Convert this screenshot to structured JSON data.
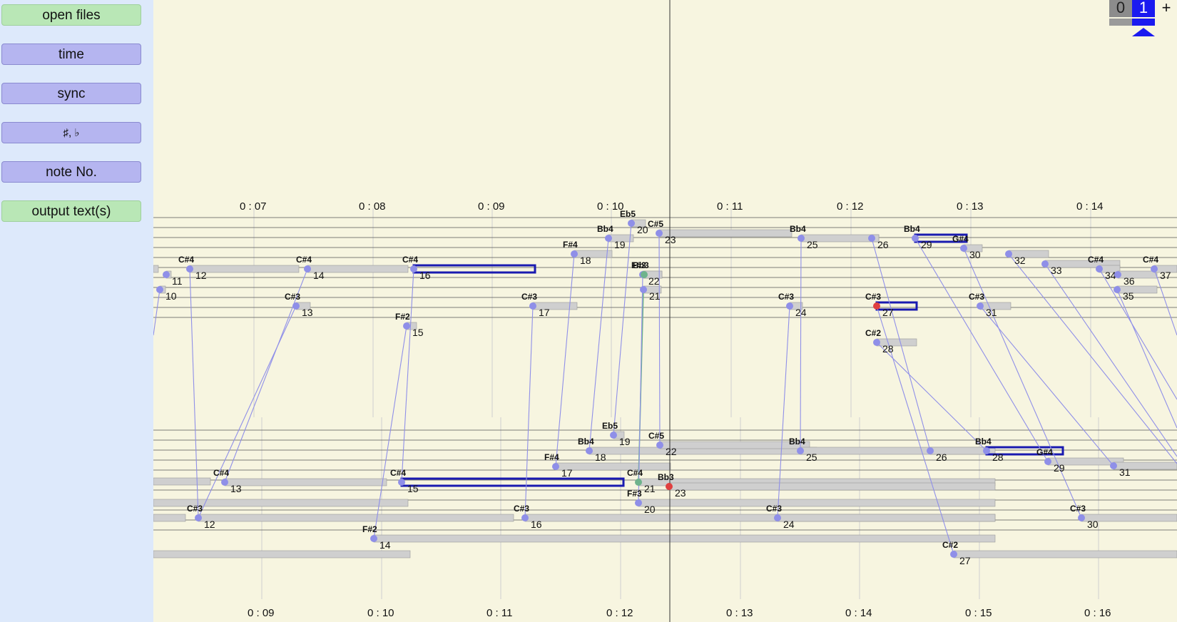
{
  "sidebar": {
    "buttons": [
      {
        "label": "open files",
        "style": "green"
      },
      {
        "label": "time",
        "style": "blue"
      },
      {
        "label": "sync",
        "style": "blue"
      },
      {
        "label": "♯, ♭",
        "style": "blue"
      },
      {
        "label": "note No.",
        "style": "blue"
      },
      {
        "label": "output text(s)",
        "style": "green"
      }
    ]
  },
  "controls": {
    "left_value": "0",
    "right_value": "1",
    "plus_label": "+"
  },
  "top_axis_labels": [
    "0 : 07",
    "0 : 08",
    "0 : 09",
    "0 : 10",
    "0 : 11",
    "0 : 12",
    "0 : 13",
    "0 : 14"
  ],
  "bottom_axis_labels": [
    "0 : 09",
    "0 : 10",
    "0 : 11",
    "0 : 12",
    "0 : 13",
    "0 : 14",
    "0 : 15",
    "0 : 16"
  ],
  "top_notes": [
    {
      "pitch": "",
      "num": "10"
    },
    {
      "pitch": "",
      "num": "11"
    },
    {
      "pitch": "C#4",
      "num": "12"
    },
    {
      "pitch": "C#3",
      "num": "13"
    },
    {
      "pitch": "C#4",
      "num": "14"
    },
    {
      "pitch": "F#2",
      "num": "15"
    },
    {
      "pitch": "C#4",
      "num": "16"
    },
    {
      "pitch": "C#3",
      "num": "17"
    },
    {
      "pitch": "F#4",
      "num": "18"
    },
    {
      "pitch": "Bb4",
      "num": "19"
    },
    {
      "pitch": "Eb5",
      "num": "20"
    },
    {
      "pitch": "",
      "num": "21"
    },
    {
      "pitch": "F#3",
      "num": "22"
    },
    {
      "pitch": "Bb3",
      "num": ""
    },
    {
      "pitch": "C#5",
      "num": "23"
    },
    {
      "pitch": "C#3",
      "num": "24"
    },
    {
      "pitch": "Bb4",
      "num": "25"
    },
    {
      "pitch": "",
      "num": "26"
    },
    {
      "pitch": "C#3",
      "num": "27"
    },
    {
      "pitch": "C#2",
      "num": "28"
    },
    {
      "pitch": "Bb4",
      "num": "29"
    },
    {
      "pitch": "G#4",
      "num": "30"
    },
    {
      "pitch": "C#3",
      "num": "31"
    },
    {
      "pitch": "",
      "num": "32"
    },
    {
      "pitch": "",
      "num": "33"
    },
    {
      "pitch": "C#4",
      "num": "34"
    },
    {
      "pitch": "",
      "num": "35"
    },
    {
      "pitch": "",
      "num": "36"
    },
    {
      "pitch": "C#4",
      "num": "37"
    }
  ],
  "bottom_notes": [
    {
      "pitch": "C#3",
      "num": "12"
    },
    {
      "pitch": "C#4",
      "num": "13"
    },
    {
      "pitch": "F#2",
      "num": "14"
    },
    {
      "pitch": "C#4",
      "num": "15"
    },
    {
      "pitch": "C#3",
      "num": "16"
    },
    {
      "pitch": "F#4",
      "num": "17"
    },
    {
      "pitch": "Bb4",
      "num": "18"
    },
    {
      "pitch": "Eb5",
      "num": "19"
    },
    {
      "pitch": "F#3",
      "num": "20"
    },
    {
      "pitch": "C#4",
      "num": "21"
    },
    {
      "pitch": "C#5",
      "num": "22"
    },
    {
      "pitch": "Bb3",
      "num": "23"
    },
    {
      "pitch": "C#3",
      "num": "24"
    },
    {
      "pitch": "Bb4",
      "num": "25"
    },
    {
      "pitch": "",
      "num": "26"
    },
    {
      "pitch": "C#2",
      "num": "27"
    },
    {
      "pitch": "Bb4",
      "num": "28"
    },
    {
      "pitch": "G#4",
      "num": "29"
    },
    {
      "pitch": "C#3",
      "num": "30"
    },
    {
      "pitch": "",
      "num": "31"
    }
  ],
  "colors": {
    "background": "#f7f5e0",
    "sidebar": "#dde9fb",
    "note_dot": "#8f8fe8",
    "link_line": "#8f8fe8",
    "matched_link": "#6fb38c",
    "error_dot": "#e04040",
    "selected_bar": "#1a1ab0",
    "duration_bar": "#cfcfcf"
  }
}
